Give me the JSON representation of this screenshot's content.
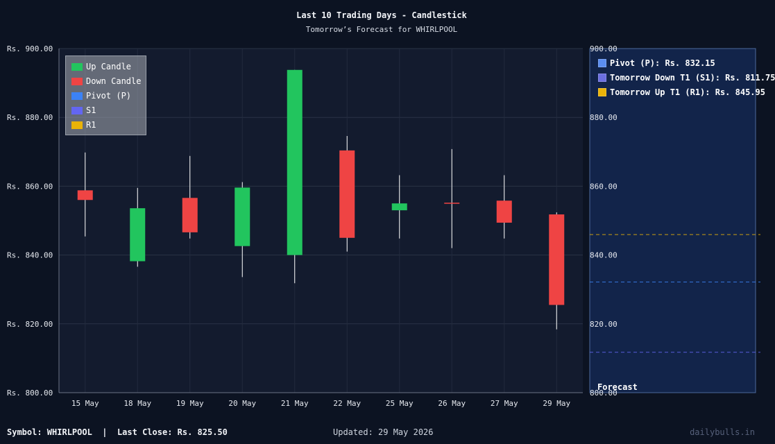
{
  "chart_data": {
    "type": "candlestick",
    "title": "Last 10 Trading Days - Candlestick",
    "subtitle": "Tomorrow’s Forecast for WHIRLPOOL",
    "y_tick_prefix": "Rs. ",
    "ylim": [
      800,
      900
    ],
    "y_ticks": [
      800,
      820,
      840,
      860,
      880,
      900
    ],
    "grid": true,
    "categories": [
      "15 May",
      "18 May",
      "19 May",
      "20 May",
      "21 May",
      "22 May",
      "25 May",
      "26 May",
      "27 May",
      "29 May"
    ],
    "candles": [
      {
        "date": "15 May",
        "open": 858.8,
        "close": 856.0,
        "high": 869.8,
        "low": 845.4,
        "direction": "down"
      },
      {
        "date": "18 May",
        "open": 838.2,
        "close": 853.6,
        "high": 859.5,
        "low": 836.6,
        "direction": "up"
      },
      {
        "date": "19 May",
        "open": 856.6,
        "close": 846.6,
        "high": 868.8,
        "low": 844.8,
        "direction": "down"
      },
      {
        "date": "20 May",
        "open": 842.6,
        "close": 859.6,
        "high": 861.2,
        "low": 833.6,
        "direction": "up"
      },
      {
        "date": "21 May",
        "open": 840.0,
        "close": 893.8,
        "high": 893.8,
        "low": 831.8,
        "direction": "up"
      },
      {
        "date": "22 May",
        "open": 870.4,
        "close": 845.0,
        "high": 874.6,
        "low": 841.0,
        "direction": "down"
      },
      {
        "date": "25 May",
        "open": 853.0,
        "close": 855.0,
        "high": 863.2,
        "low": 844.8,
        "direction": "up"
      },
      {
        "date": "26 May",
        "open": 855.2,
        "close": 855.0,
        "high": 870.8,
        "low": 842.0,
        "direction": "down"
      },
      {
        "date": "27 May",
        "open": 855.8,
        "close": 849.4,
        "high": 863.2,
        "low": 844.8,
        "direction": "down"
      },
      {
        "date": "29 May",
        "open": 851.8,
        "close": 825.5,
        "high": 852.4,
        "low": 818.4,
        "direction": "down"
      }
    ],
    "legend": {
      "placement": "top-left",
      "items": [
        {
          "label": "Up Candle",
          "color": "#22c55e"
        },
        {
          "label": "Down Candle",
          "color": "#ef4444"
        },
        {
          "label": "Pivot (P)",
          "color": "#3b82f6"
        },
        {
          "label": "S1",
          "color": "#6366f1"
        },
        {
          "label": "R1",
          "color": "#eab308"
        }
      ]
    },
    "forecast": {
      "label": "Forecast",
      "levels": [
        {
          "label": "Pivot (P): Rs. 832.15",
          "value": 832.15,
          "color": "#3b82f6",
          "swatch": "#5b8def"
        },
        {
          "label": "Tomorrow Down T1 (S1): Rs. 811.75",
          "value": 811.75,
          "color": "#6366f1",
          "swatch": "#6b6fe0"
        },
        {
          "label": "Tomorrow Up T1 (R1): Rs. 845.95",
          "value": 845.95,
          "color": "#eab308",
          "swatch": "#eab308"
        }
      ]
    }
  },
  "footer": {
    "left": "Symbol: WHIRLPOOL  |  Last Close: Rs. 825.50",
    "center": "Updated: 29 May 2026",
    "right": "dailybulls.in"
  },
  "colors": {
    "background": "#0c1322",
    "plot_background": "#131b2e",
    "forecast_panel": "#12244a",
    "up": "#22c55e",
    "down": "#ef4444"
  }
}
